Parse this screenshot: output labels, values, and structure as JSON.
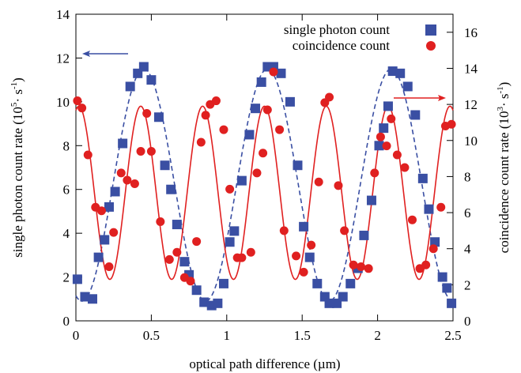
{
  "colors": {
    "single": "#3a4fa3",
    "coincidence": "#e02020",
    "arrow_left": "#3a4fa3",
    "arrow_right": "#e02020"
  },
  "chart_data": {
    "type": "scatter",
    "title": "",
    "xlabel": "optical path difference  (µm)",
    "ylabel_left": {
      "prefix": "single photon count rate  (10",
      "exp": "5",
      "mid": "· s",
      "exp2": "-1",
      "suffix": ")"
    },
    "ylabel_right": {
      "prefix": "coincidence count rate  (10",
      "exp": "3",
      "mid": "· s",
      "exp2": "-1",
      "suffix": ")"
    },
    "xlim": [
      0,
      2.5
    ],
    "ylim_left": [
      0,
      14
    ],
    "ylim_right": [
      0,
      17
    ],
    "x_ticks": [
      "0",
      "0.5",
      "1",
      "1.5",
      "2",
      "2.5"
    ],
    "y_ticks_left": [
      "0",
      "2",
      "4",
      "6",
      "8",
      "10",
      "12",
      "14"
    ],
    "y_ticks_right": [
      "0",
      "2",
      "4",
      "6",
      "8",
      "10",
      "12",
      "14",
      "16"
    ],
    "grid": false,
    "legend": {
      "placement": "top-right",
      "entries": [
        "single photon count",
        "coincidence count"
      ]
    },
    "series": [
      {
        "name": "single photon count",
        "axis": "left",
        "marker": "square",
        "points": [
          [
            0.01,
            1.9
          ],
          [
            0.06,
            1.1
          ],
          [
            0.11,
            1.0
          ],
          [
            0.15,
            2.9
          ],
          [
            0.19,
            3.7
          ],
          [
            0.22,
            5.2
          ],
          [
            0.26,
            5.9
          ],
          [
            0.31,
            8.1
          ],
          [
            0.36,
            10.7
          ],
          [
            0.41,
            11.3
          ],
          [
            0.45,
            11.6
          ],
          [
            0.5,
            11.0
          ],
          [
            0.55,
            9.3
          ],
          [
            0.59,
            7.1
          ],
          [
            0.63,
            6.0
          ],
          [
            0.67,
            4.4
          ],
          [
            0.72,
            2.7
          ],
          [
            0.75,
            2.1
          ],
          [
            0.8,
            1.4
          ],
          [
            0.85,
            0.85
          ],
          [
            0.9,
            0.7
          ],
          [
            0.94,
            0.8
          ],
          [
            0.98,
            1.7
          ],
          [
            1.02,
            3.6
          ],
          [
            1.05,
            4.1
          ],
          [
            1.1,
            6.4
          ],
          [
            1.15,
            8.5
          ],
          [
            1.19,
            9.7
          ],
          [
            1.23,
            10.9
          ],
          [
            1.27,
            11.6
          ],
          [
            1.31,
            11.6
          ],
          [
            1.36,
            11.3
          ],
          [
            1.42,
            10.0
          ],
          [
            1.47,
            7.1
          ],
          [
            1.51,
            4.3
          ],
          [
            1.55,
            2.9
          ],
          [
            1.6,
            1.7
          ],
          [
            1.65,
            1.1
          ],
          [
            1.68,
            0.8
          ],
          [
            1.73,
            0.8
          ],
          [
            1.77,
            1.1
          ],
          [
            1.82,
            1.7
          ],
          [
            1.87,
            2.4
          ],
          [
            1.91,
            3.9
          ],
          [
            1.96,
            5.5
          ],
          [
            2.01,
            8.0
          ],
          [
            2.04,
            8.8
          ],
          [
            2.07,
            9.8
          ],
          [
            2.1,
            11.4
          ],
          [
            2.15,
            11.3
          ],
          [
            2.2,
            10.7
          ],
          [
            2.25,
            9.4
          ],
          [
            2.3,
            6.5
          ],
          [
            2.34,
            5.1
          ],
          [
            2.38,
            3.6
          ],
          [
            2.43,
            2.0
          ],
          [
            2.46,
            1.5
          ],
          [
            2.49,
            0.8
          ]
        ]
      },
      {
        "name": "coincidence count",
        "axis": "right",
        "marker": "circle",
        "points": [
          [
            0.01,
            12.2
          ],
          [
            0.04,
            11.8
          ],
          [
            0.08,
            9.2
          ],
          [
            0.13,
            6.3
          ],
          [
            0.17,
            6.1
          ],
          [
            0.22,
            3.0
          ],
          [
            0.25,
            4.9
          ],
          [
            0.3,
            8.2
          ],
          [
            0.34,
            7.8
          ],
          [
            0.39,
            7.6
          ],
          [
            0.43,
            9.4
          ],
          [
            0.47,
            11.5
          ],
          [
            0.5,
            9.4
          ],
          [
            0.56,
            5.5
          ],
          [
            0.62,
            3.4
          ],
          [
            0.67,
            3.8
          ],
          [
            0.72,
            2.4
          ],
          [
            0.76,
            2.2
          ],
          [
            0.8,
            4.4
          ],
          [
            0.83,
            9.9
          ],
          [
            0.86,
            11.4
          ],
          [
            0.89,
            12.0
          ],
          [
            0.93,
            12.2
          ],
          [
            0.98,
            10.6
          ],
          [
            1.02,
            7.3
          ],
          [
            1.07,
            3.5
          ],
          [
            1.1,
            3.5
          ],
          [
            1.16,
            3.8
          ],
          [
            1.2,
            8.2
          ],
          [
            1.24,
            9.3
          ],
          [
            1.27,
            11.7
          ],
          [
            1.31,
            13.8
          ],
          [
            1.35,
            10.6
          ],
          [
            1.38,
            5.0
          ],
          [
            1.46,
            3.6
          ],
          [
            1.51,
            2.7
          ],
          [
            1.56,
            4.2
          ],
          [
            1.61,
            7.7
          ],
          [
            1.65,
            12.1
          ],
          [
            1.68,
            12.4
          ],
          [
            1.74,
            7.5
          ],
          [
            1.78,
            5.0
          ],
          [
            1.84,
            3.1
          ],
          [
            1.89,
            3.0
          ],
          [
            1.94,
            2.9
          ],
          [
            1.98,
            8.2
          ],
          [
            2.02,
            10.2
          ],
          [
            2.06,
            9.7
          ],
          [
            2.09,
            11.2
          ],
          [
            2.13,
            9.2
          ],
          [
            2.18,
            8.5
          ],
          [
            2.23,
            5.6
          ],
          [
            2.28,
            2.9
          ],
          [
            2.32,
            3.1
          ],
          [
            2.37,
            4.0
          ],
          [
            2.42,
            6.3
          ],
          [
            2.45,
            10.8
          ],
          [
            2.49,
            10.9
          ]
        ]
      }
    ],
    "fits": [
      {
        "series": "single photon count",
        "axis": "left",
        "style": "dashed",
        "center": 6.2,
        "amplitude": 5.3,
        "period": 0.82,
        "peak_x": 0.45
      },
      {
        "series": "coincidence count",
        "axis": "right",
        "style": "solid",
        "center": 7.1,
        "amplitude": 4.8,
        "period": 0.41,
        "peak_x": 0.43
      }
    ]
  }
}
